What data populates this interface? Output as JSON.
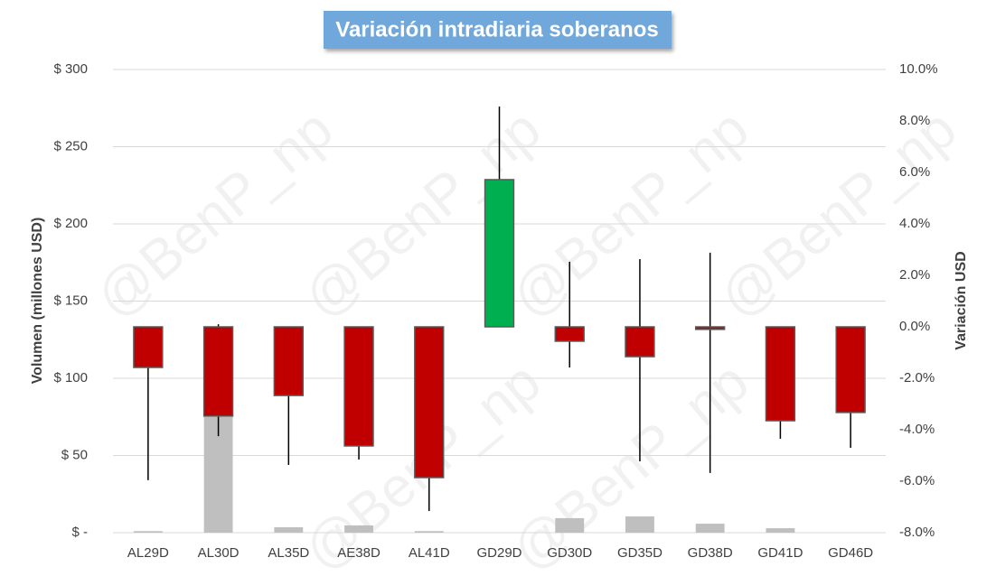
{
  "chart_data": {
    "type": "candlestick",
    "title": "Variación intradiaria soberanos",
    "watermark": "@BenP_np",
    "ylabel": "Volumen (millones USD)",
    "y2label": "Variación USD",
    "categories": [
      "AL29D",
      "AL30D",
      "AL35D",
      "AE38D",
      "AL41D",
      "GD29D",
      "GD30D",
      "GD35D",
      "GD38D",
      "GD41D",
      "GD46D"
    ],
    "volume": {
      "color": "#bfbfbf",
      "values": [
        1,
        75,
        3.5,
        4.7,
        1,
        0,
        9.4,
        10.5,
        5.8,
        2.9,
        0
      ]
    },
    "candles": {
      "axis": "y2",
      "up_color": "#00b050",
      "down_color": "#c00000",
      "open": [
        0,
        0,
        0,
        0,
        0,
        0,
        0,
        0,
        0,
        0,
        0
      ],
      "high": [
        0,
        0.1,
        0,
        0,
        0,
        8.56,
        2.53,
        2.63,
        2.88,
        0,
        0
      ],
      "low": [
        -5.96,
        -4.25,
        -5.37,
        -5.16,
        -7.16,
        0,
        -1.58,
        -5.23,
        -5.68,
        -4.35,
        -4.7
      ],
      "close": [
        -1.58,
        -3.47,
        -2.67,
        -4.63,
        -5.86,
        5.72,
        -0.56,
        -1.16,
        -0.1,
        -3.65,
        -3.33
      ]
    },
    "ylim": [
      0,
      300
    ],
    "yticks": [
      {
        "value": 0,
        "label": "$ -"
      },
      {
        "value": 50,
        "label": "$ 50"
      },
      {
        "value": 100,
        "label": "$ 100"
      },
      {
        "value": 150,
        "label": "$ 150"
      },
      {
        "value": 200,
        "label": "$ 200"
      },
      {
        "value": 250,
        "label": "$ 250"
      },
      {
        "value": 300,
        "label": "$ 300"
      }
    ],
    "y2lim": [
      -8,
      10
    ],
    "y2ticks": [
      {
        "value": -8,
        "label": "-8.0%"
      },
      {
        "value": -6,
        "label": "-6.0%"
      },
      {
        "value": -4,
        "label": "-4.0%"
      },
      {
        "value": -2,
        "label": "-2.0%"
      },
      {
        "value": 0,
        "label": "0.0%"
      },
      {
        "value": 2,
        "label": "2.0%"
      },
      {
        "value": 4,
        "label": "4.0%"
      },
      {
        "value": 6,
        "label": "6.0%"
      },
      {
        "value": 8,
        "label": "8.0%"
      },
      {
        "value": 10,
        "label": "10.0%"
      }
    ],
    "grid": true
  }
}
